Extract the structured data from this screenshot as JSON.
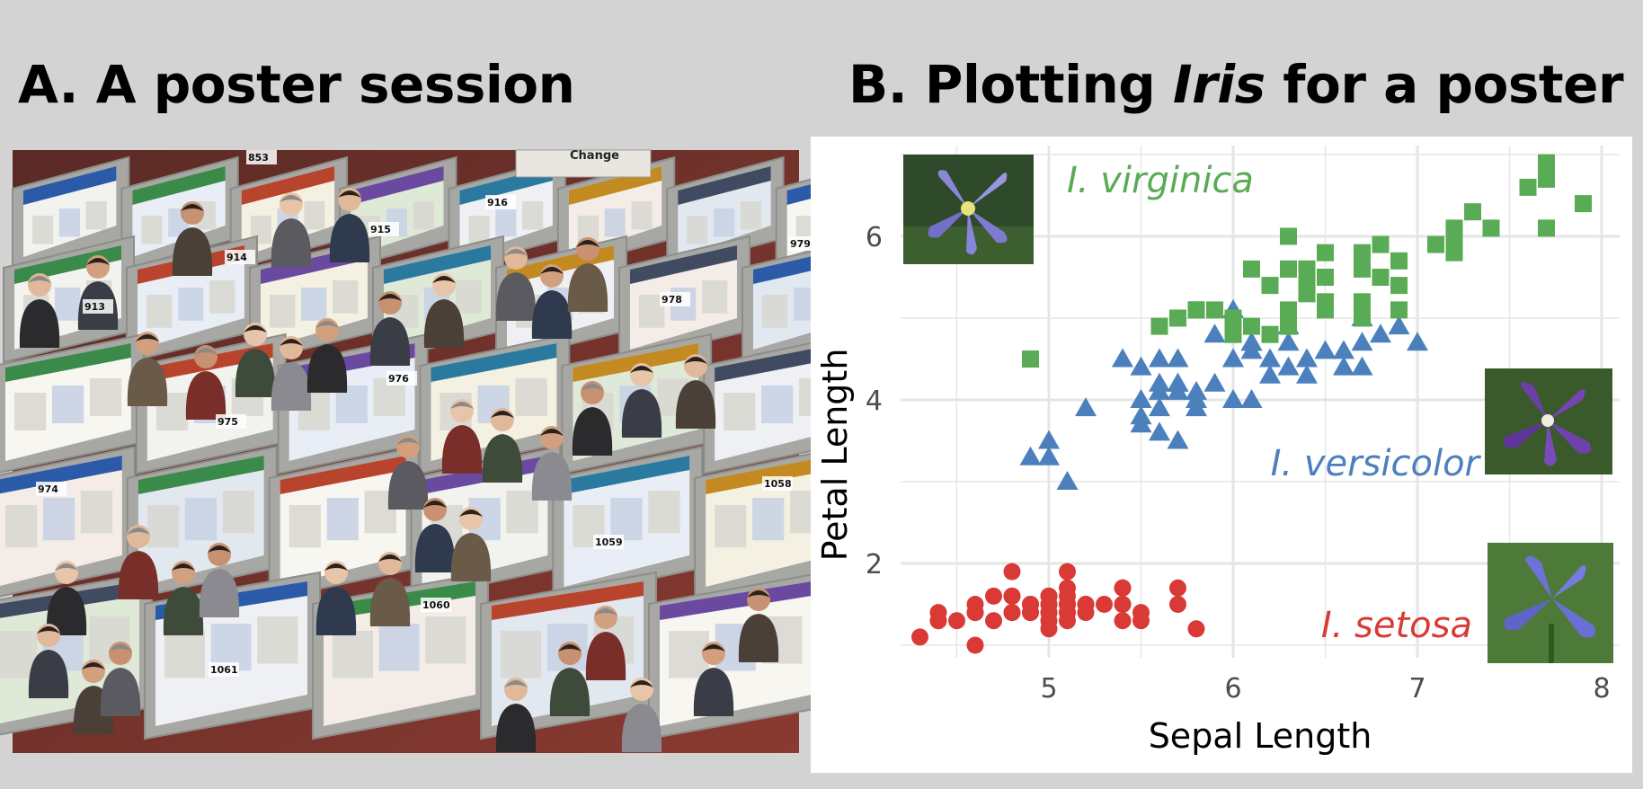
{
  "panel_a": {
    "title": "A. A poster session"
  },
  "panel_b": {
    "title_before": "B. Plotting ",
    "title_italic": "Iris",
    "title_after": " for a poster"
  },
  "photo": {
    "sign_text": "Change",
    "board_numbers": [
      "853",
      "914",
      "915",
      "916",
      "913",
      "979",
      "978",
      "976",
      "975",
      "974",
      "1058",
      "1059",
      "1060",
      "1061"
    ]
  },
  "colors": {
    "background": "#d3d3d3",
    "setosa": "#d93a35",
    "versicolor": "#4b80bd",
    "virginica": "#5aab56",
    "gridline": "#e5e5e5"
  },
  "chart_data": {
    "type": "scatter",
    "title": "",
    "xlabel": "Sepal Length",
    "ylabel": "Petal Length",
    "xlim": [
      4.2,
      8.1
    ],
    "ylim": [
      0.8,
      7.0
    ],
    "xticks": [
      5,
      6,
      7,
      8
    ],
    "yticks": [
      2,
      4,
      6
    ],
    "grid": true,
    "series": [
      {
        "name": "I. setosa",
        "marker": "circle",
        "color": "#d93a35",
        "x": [
          4.3,
          4.4,
          4.4,
          4.4,
          4.5,
          4.6,
          4.6,
          4.6,
          4.6,
          4.7,
          4.7,
          4.8,
          4.8,
          4.8,
          4.8,
          4.8,
          4.9,
          4.9,
          4.9,
          4.9,
          5.0,
          5.0,
          5.0,
          5.0,
          5.0,
          5.0,
          5.0,
          5.0,
          5.1,
          5.1,
          5.1,
          5.1,
          5.1,
          5.1,
          5.1,
          5.1,
          5.1,
          5.2,
          5.2,
          5.2,
          5.3,
          5.4,
          5.4,
          5.4,
          5.4,
          5.4,
          5.5,
          5.5,
          5.7,
          5.7,
          5.8
        ],
        "y": [
          1.1,
          1.4,
          1.3,
          1.3,
          1.3,
          1.4,
          1.5,
          1.0,
          1.4,
          1.3,
          1.6,
          1.4,
          1.6,
          1.4,
          1.9,
          1.6,
          1.4,
          1.5,
          1.5,
          1.4,
          1.4,
          1.5,
          1.6,
          1.2,
          1.3,
          1.6,
          1.4,
          1.5,
          1.4,
          1.5,
          1.5,
          1.7,
          1.9,
          1.6,
          1.4,
          1.5,
          1.3,
          1.5,
          1.4,
          1.5,
          1.5,
          1.7,
          1.5,
          1.3,
          1.7,
          1.5,
          1.4,
          1.3,
          1.7,
          1.5,
          1.2
        ]
      },
      {
        "name": "I. versicolor",
        "marker": "triangle",
        "color": "#4b80bd",
        "x": [
          4.9,
          5.0,
          5.0,
          5.1,
          5.2,
          5.4,
          5.5,
          5.5,
          5.5,
          5.5,
          5.5,
          5.6,
          5.6,
          5.6,
          5.6,
          5.6,
          5.7,
          5.7,
          5.7,
          5.7,
          5.7,
          5.8,
          5.8,
          5.8,
          5.9,
          5.9,
          6.0,
          6.0,
          6.0,
          6.0,
          6.1,
          6.1,
          6.1,
          6.1,
          6.2,
          6.2,
          6.3,
          6.3,
          6.3,
          6.4,
          6.4,
          6.5,
          6.6,
          6.6,
          6.7,
          6.7,
          6.7,
          6.8,
          6.9,
          7.0
        ],
        "y": [
          3.3,
          3.5,
          3.3,
          3.0,
          3.9,
          4.5,
          4.0,
          3.8,
          3.7,
          4.4,
          4.0,
          4.5,
          3.6,
          4.2,
          4.1,
          3.9,
          4.5,
          3.5,
          4.2,
          4.2,
          4.1,
          4.1,
          4.0,
          3.9,
          4.8,
          4.2,
          4.5,
          4.0,
          4.5,
          5.1,
          4.7,
          4.0,
          4.7,
          4.6,
          4.3,
          4.5,
          4.9,
          4.4,
          4.7,
          4.3,
          4.5,
          4.6,
          4.6,
          4.4,
          4.4,
          4.7,
          5.0,
          4.8,
          4.9,
          4.7
        ]
      },
      {
        "name": "I. virginica",
        "marker": "square",
        "color": "#5aab56",
        "x": [
          4.9,
          5.6,
          5.7,
          5.8,
          5.8,
          5.8,
          5.9,
          6.0,
          6.0,
          6.1,
          6.1,
          6.2,
          6.2,
          6.3,
          6.3,
          6.3,
          6.3,
          6.3,
          6.3,
          6.4,
          6.4,
          6.4,
          6.4,
          6.4,
          6.5,
          6.5,
          6.5,
          6.5,
          6.7,
          6.7,
          6.7,
          6.7,
          6.7,
          6.8,
          6.8,
          6.9,
          6.9,
          6.9,
          7.1,
          7.2,
          7.2,
          7.2,
          7.3,
          7.4,
          7.6,
          7.7,
          7.7,
          7.7,
          7.7,
          7.9
        ],
        "y": [
          4.5,
          4.9,
          5.0,
          5.1,
          5.1,
          5.1,
          5.1,
          4.8,
          5.0,
          5.6,
          4.9,
          5.4,
          4.8,
          6.0,
          5.6,
          5.1,
          5.6,
          4.9,
          5.0,
          5.6,
          5.3,
          5.5,
          5.3,
          5.6,
          5.8,
          5.5,
          5.1,
          5.2,
          5.7,
          5.8,
          5.6,
          5.2,
          5.0,
          5.5,
          5.9,
          5.4,
          5.1,
          5.7,
          5.9,
          6.1,
          5.8,
          6.0,
          6.3,
          6.1,
          6.6,
          6.7,
          6.9,
          6.7,
          6.1,
          6.4
        ]
      }
    ]
  }
}
